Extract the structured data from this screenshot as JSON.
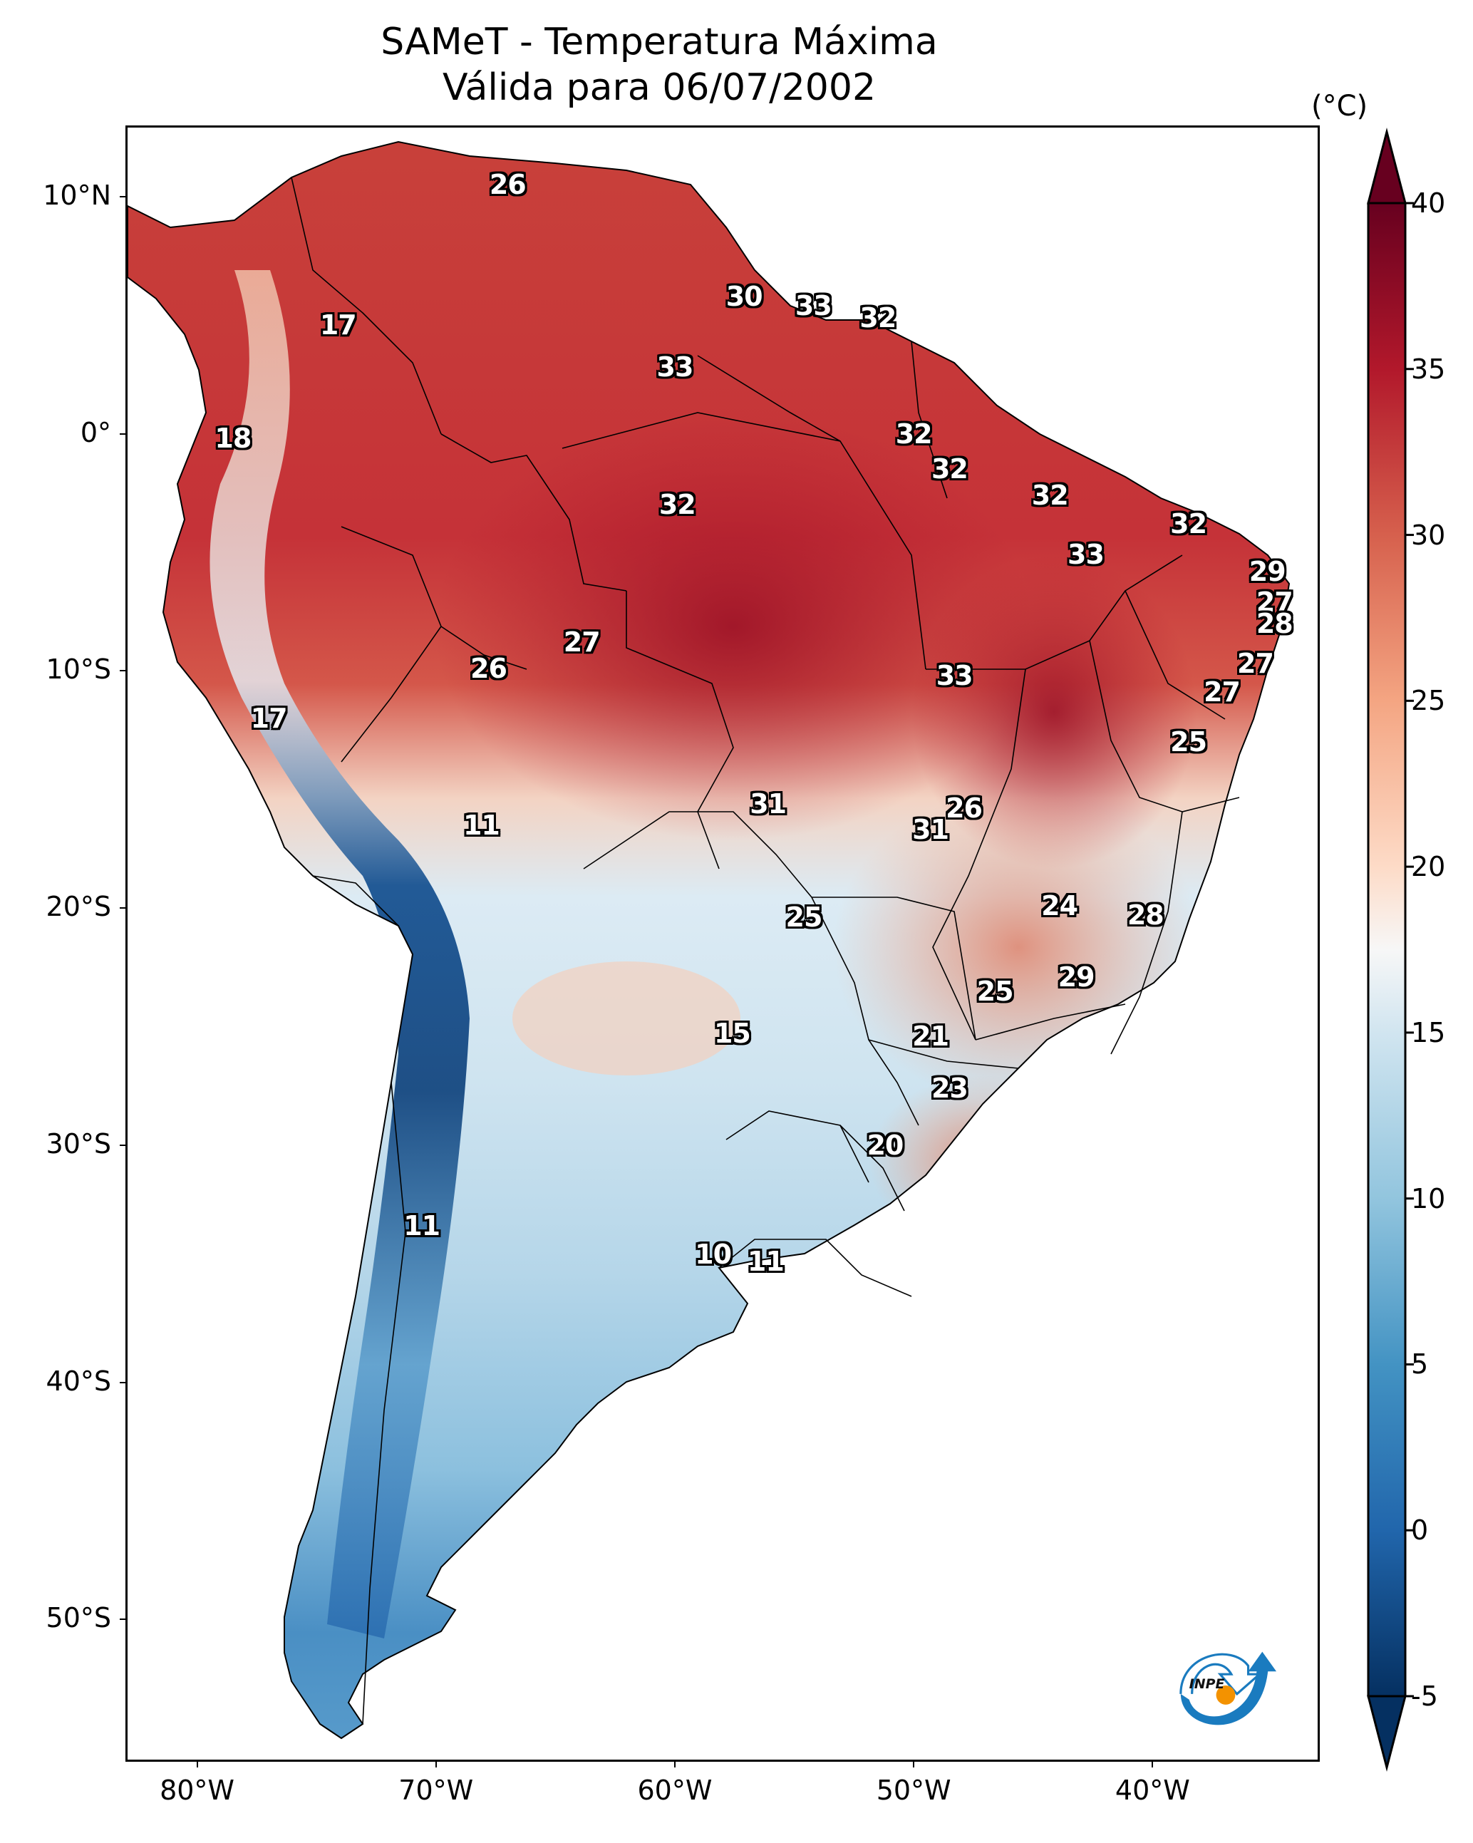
{
  "title": {
    "line1": "SAMeT - Temperatura Máxima",
    "line2": "Válida para 06/07/2002"
  },
  "colorbar": {
    "unit": "(°C)",
    "min": -5,
    "max": 40,
    "extend": "both",
    "ticks": [
      "-5",
      "0",
      "5",
      "10",
      "15",
      "20",
      "25",
      "30",
      "35",
      "40"
    ],
    "tick_values": [
      -5,
      0,
      5,
      10,
      15,
      20,
      25,
      30,
      35,
      40
    ],
    "colormap": "RdBu_r",
    "stops": [
      {
        "v": -5,
        "color": "#053061"
      },
      {
        "v": 0,
        "color": "#2166ac"
      },
      {
        "v": 5,
        "color": "#4393c3"
      },
      {
        "v": 10,
        "color": "#92c5de"
      },
      {
        "v": 15,
        "color": "#d1e5f0"
      },
      {
        "v": 17.5,
        "color": "#f7f7f7"
      },
      {
        "v": 20,
        "color": "#fddbc7"
      },
      {
        "v": 25,
        "color": "#f4a582"
      },
      {
        "v": 30,
        "color": "#d6604d"
      },
      {
        "v": 35,
        "color": "#b2182b"
      },
      {
        "v": 40,
        "color": "#67001f"
      }
    ]
  },
  "axes": {
    "lat_labels": [
      "10°N",
      "0°",
      "10°S",
      "20°S",
      "30°S",
      "40°S",
      "50°S"
    ],
    "lat_values": [
      10,
      0,
      -10,
      -20,
      -30,
      -40,
      -50
    ],
    "lon_labels": [
      "80°W",
      "70°W",
      "60°W",
      "50°W",
      "40°W"
    ],
    "lon_values": [
      -80,
      -70,
      -60,
      -50,
      -40
    ],
    "lat_range": [
      -56,
      13
    ],
    "lon_range": [
      -83,
      -33
    ]
  },
  "annotations": [
    {
      "value": "26",
      "lon": -67.0,
      "lat": 10.5
    },
    {
      "value": "17",
      "lon": -74.1,
      "lat": 4.6
    },
    {
      "value": "30",
      "lon": -57.1,
      "lat": 5.8
    },
    {
      "value": "33",
      "lon": -54.2,
      "lat": 5.4
    },
    {
      "value": "32",
      "lon": -51.5,
      "lat": 4.9
    },
    {
      "value": "33",
      "lon": -60.0,
      "lat": 2.8
    },
    {
      "value": "18",
      "lon": -78.5,
      "lat": -0.2
    },
    {
      "value": "32",
      "lon": -50.0,
      "lat": 0.0
    },
    {
      "value": "32",
      "lon": -48.5,
      "lat": -1.5
    },
    {
      "value": "32",
      "lon": -59.9,
      "lat": -3.0
    },
    {
      "value": "32",
      "lon": -44.3,
      "lat": -2.6
    },
    {
      "value": "32",
      "lon": -38.5,
      "lat": -3.8
    },
    {
      "value": "33",
      "lon": -42.8,
      "lat": -5.1
    },
    {
      "value": "29",
      "lon": -35.2,
      "lat": -5.8
    },
    {
      "value": "27",
      "lon": -34.9,
      "lat": -7.1
    },
    {
      "value": "28",
      "lon": -34.9,
      "lat": -8.0
    },
    {
      "value": "27",
      "lon": -63.9,
      "lat": -8.8
    },
    {
      "value": "26",
      "lon": -67.8,
      "lat": -9.9
    },
    {
      "value": "27",
      "lon": -35.7,
      "lat": -9.7
    },
    {
      "value": "33",
      "lon": -48.3,
      "lat": -10.2
    },
    {
      "value": "27",
      "lon": -37.1,
      "lat": -10.9
    },
    {
      "value": "17",
      "lon": -77.0,
      "lat": -12.0
    },
    {
      "value": "25",
      "lon": -38.5,
      "lat": -13.0
    },
    {
      "value": "31",
      "lon": -56.1,
      "lat": -15.6
    },
    {
      "value": "26",
      "lon": -47.9,
      "lat": -15.8
    },
    {
      "value": "31",
      "lon": -49.3,
      "lat": -16.7
    },
    {
      "value": "11",
      "lon": -68.1,
      "lat": -16.5
    },
    {
      "value": "24",
      "lon": -43.9,
      "lat": -19.9
    },
    {
      "value": "28",
      "lon": -40.3,
      "lat": -20.3
    },
    {
      "value": "25",
      "lon": -54.6,
      "lat": -20.4
    },
    {
      "value": "29",
      "lon": -43.2,
      "lat": -22.9
    },
    {
      "value": "25",
      "lon": -46.6,
      "lat": -23.5
    },
    {
      "value": "15",
      "lon": -57.6,
      "lat": -25.3
    },
    {
      "value": "21",
      "lon": -49.3,
      "lat": -25.4
    },
    {
      "value": "23",
      "lon": -48.5,
      "lat": -27.6
    },
    {
      "value": "20",
      "lon": -51.2,
      "lat": -30.0
    },
    {
      "value": "11",
      "lon": -70.6,
      "lat": -33.4
    },
    {
      "value": "10",
      "lon": -58.4,
      "lat": -34.6
    },
    {
      "value": "11",
      "lon": -56.2,
      "lat": -34.9
    }
  ],
  "logo": {
    "text": "INPE",
    "colors": {
      "blue": "#1a7bbf",
      "orange": "#f39200"
    }
  }
}
